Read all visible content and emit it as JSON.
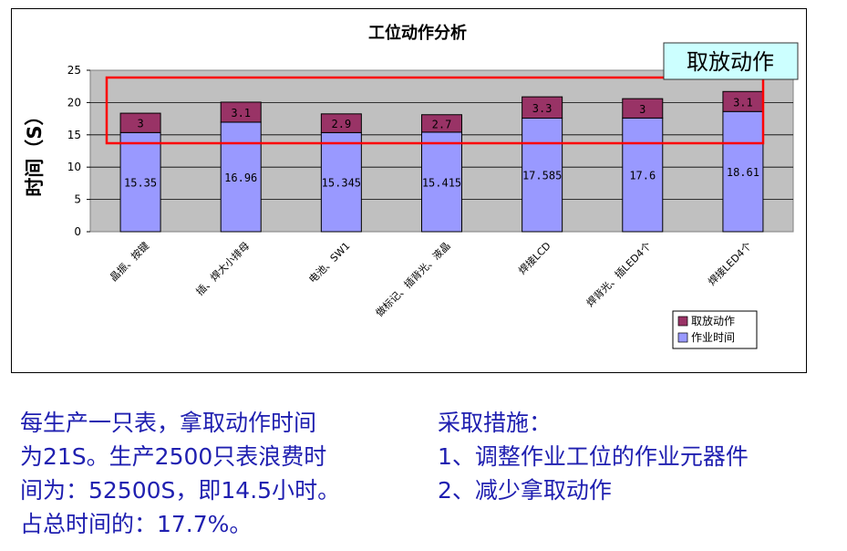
{
  "chart_data": {
    "type": "bar",
    "stacked": true,
    "title": "工位动作分析",
    "xlabel": "",
    "ylabel": "时间（S）",
    "ylim": [
      0,
      25
    ],
    "yticks": [
      0,
      5,
      10,
      15,
      20,
      25
    ],
    "grid": true,
    "legend_position": "right",
    "categories": [
      "晶振、按键",
      "插、焊大小排母",
      "电池、SW1",
      "做标记、插背光、液晶",
      "焊接LCD",
      "焊背光、插LED4个",
      "焊接LED4个"
    ],
    "series": [
      {
        "name": "作业时间",
        "color": "#9999ff",
        "values": [
          15.35,
          16.96,
          15.345,
          15.415,
          17.585,
          17.6,
          18.61
        ],
        "labels": [
          "15.35",
          "16.96",
          "15.345",
          "15.415",
          "17.585",
          "17.6",
          "18.61"
        ]
      },
      {
        "name": "取放动作",
        "color": "#993366",
        "values": [
          3,
          3.1,
          2.9,
          2.7,
          3.3,
          3,
          3.1
        ],
        "labels": [
          "3",
          "3.1",
          "2.9",
          "2.7",
          "3.3",
          "3",
          "3.1"
        ]
      }
    ],
    "annotation": {
      "text": "取放动作"
    }
  },
  "notes": {
    "left": [
      "每生产一只表，拿取动作时间",
      "为21S。生产2500只表浪费时",
      "间为：52500S，即14.5小时。",
      "占总时间的：17.7%。"
    ],
    "right": [
      "采取措施：",
      "1、调整作业工位的作业元器件",
      "2、减少拿取动作"
    ]
  }
}
